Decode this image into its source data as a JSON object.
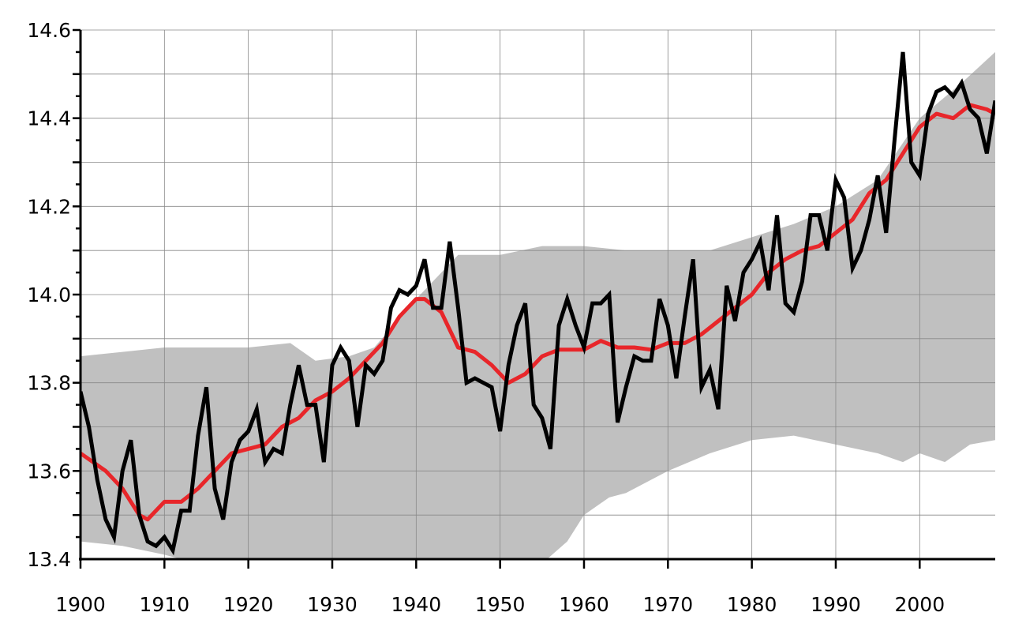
{
  "chart_data": {
    "type": "line",
    "title": "",
    "xlabel": "",
    "ylabel": "",
    "xlim": [
      1900,
      2009
    ],
    "ylim": [
      13.4,
      14.6
    ],
    "grid": true,
    "legend": "none",
    "x_ticks": [
      "1900",
      "1910",
      "1920",
      "1930",
      "1940",
      "1950",
      "1960",
      "1970",
      "1980",
      "1990",
      "2000"
    ],
    "y_ticks": [
      "13.4",
      "13.6",
      "13.8",
      "14.0",
      "14.2",
      "14.4",
      "14.6"
    ],
    "colors": {
      "annual": "#000000",
      "smoothed": "#e8262a",
      "band": "#c0c0c0",
      "grid": "#888888"
    },
    "series": [
      {
        "type": "line",
        "color": "#000000",
        "x_start": 1900,
        "values": [
          13.78,
          13.7,
          13.58,
          13.49,
          13.45,
          13.6,
          13.67,
          13.5,
          13.44,
          13.43,
          13.45,
          13.42,
          13.51,
          13.51,
          13.68,
          13.79,
          13.56,
          13.49,
          13.62,
          13.67,
          13.69,
          13.74,
          13.62,
          13.65,
          13.64,
          13.75,
          13.84,
          13.75,
          13.75,
          13.62,
          13.84,
          13.88,
          13.85,
          13.7,
          13.84,
          13.82,
          13.85,
          13.97,
          14.01,
          14.0,
          14.02,
          14.08,
          13.97,
          13.97,
          14.12,
          13.97,
          13.8,
          13.81,
          13.8,
          13.79,
          13.69,
          13.84,
          13.93,
          13.98,
          13.75,
          13.72,
          13.65,
          13.93,
          13.99,
          13.93,
          13.88,
          13.98,
          13.98,
          14.0,
          13.71,
          13.79,
          13.86,
          13.85,
          13.85,
          13.99,
          13.93,
          13.81,
          13.95,
          14.08,
          13.79,
          13.83,
          13.74,
          14.02,
          13.94,
          14.05,
          14.08,
          14.12,
          14.01,
          14.18,
          13.98,
          13.96,
          14.03,
          14.18,
          14.18,
          14.1,
          14.26,
          14.22,
          14.06,
          14.1,
          14.17,
          14.27,
          14.14,
          14.35,
          14.55,
          14.3,
          14.27,
          14.41,
          14.46,
          14.47,
          14.45,
          14.48,
          14.42,
          14.4,
          14.32,
          14.44
        ]
      },
      {
        "type": "smoothed",
        "color": "#e8262a",
        "points": [
          [
            1900,
            13.64
          ],
          [
            1903,
            13.6
          ],
          [
            1905,
            13.56
          ],
          [
            1907,
            13.5
          ],
          [
            1908,
            13.49
          ],
          [
            1910,
            13.53
          ],
          [
            1912,
            13.53
          ],
          [
            1914,
            13.56
          ],
          [
            1916,
            13.6
          ],
          [
            1918,
            13.64
          ],
          [
            1920,
            13.65
          ],
          [
            1922,
            13.66
          ],
          [
            1924,
            13.7
          ],
          [
            1926,
            13.72
          ],
          [
            1928,
            13.76
          ],
          [
            1930,
            13.78
          ],
          [
            1932,
            13.81
          ],
          [
            1934,
            13.85
          ],
          [
            1936,
            13.89
          ],
          [
            1938,
            13.95
          ],
          [
            1940,
            13.99
          ],
          [
            1941,
            13.99
          ],
          [
            1943,
            13.96
          ],
          [
            1945,
            13.88
          ],
          [
            1947,
            13.87
          ],
          [
            1949,
            13.84
          ],
          [
            1951,
            13.8
          ],
          [
            1953,
            13.82
          ],
          [
            1955,
            13.86
          ],
          [
            1957,
            13.875
          ],
          [
            1960,
            13.875
          ],
          [
            1962,
            13.895
          ],
          [
            1964,
            13.88
          ],
          [
            1966,
            13.88
          ],
          [
            1968,
            13.875
          ],
          [
            1970,
            13.89
          ],
          [
            1972,
            13.89
          ],
          [
            1974,
            13.91
          ],
          [
            1976,
            13.94
          ],
          [
            1978,
            13.97
          ],
          [
            1980,
            14.0
          ],
          [
            1982,
            14.05
          ],
          [
            1984,
            14.08
          ],
          [
            1986,
            14.1
          ],
          [
            1988,
            14.11
          ],
          [
            1990,
            14.14
          ],
          [
            1992,
            14.17
          ],
          [
            1994,
            14.23
          ],
          [
            1996,
            14.26
          ],
          [
            1998,
            14.32
          ],
          [
            2000,
            14.38
          ],
          [
            2002,
            14.41
          ],
          [
            2004,
            14.4
          ],
          [
            2006,
            14.43
          ],
          [
            2008,
            14.42
          ],
          [
            2009,
            14.41
          ]
        ]
      },
      {
        "type": "band",
        "color": "#c0c0c0",
        "upper": [
          [
            1900,
            13.86
          ],
          [
            1905,
            13.87
          ],
          [
            1910,
            13.88
          ],
          [
            1920,
            13.88
          ],
          [
            1925,
            13.89
          ],
          [
            1928,
            13.85
          ],
          [
            1932,
            13.86
          ],
          [
            1935,
            13.88
          ],
          [
            1940,
            13.99
          ],
          [
            1943,
            14.05
          ],
          [
            1945,
            14.09
          ],
          [
            1950,
            14.09
          ],
          [
            1955,
            14.11
          ],
          [
            1960,
            14.11
          ],
          [
            1965,
            14.1
          ],
          [
            1970,
            14.1
          ],
          [
            1975,
            14.1
          ],
          [
            1980,
            14.13
          ],
          [
            1985,
            14.16
          ],
          [
            1990,
            14.2
          ],
          [
            1995,
            14.26
          ],
          [
            2000,
            14.4
          ],
          [
            2005,
            14.48
          ],
          [
            2009,
            14.55
          ]
        ],
        "lower": [
          [
            1900,
            13.44
          ],
          [
            1905,
            13.43
          ],
          [
            1910,
            13.41
          ],
          [
            1912,
            13.4
          ],
          [
            1920,
            13.38
          ],
          [
            1930,
            13.39
          ],
          [
            1940,
            13.37
          ],
          [
            1950,
            13.35
          ],
          [
            1955,
            13.39
          ],
          [
            1958,
            13.44
          ],
          [
            1960,
            13.5
          ],
          [
            1963,
            13.54
          ],
          [
            1965,
            13.55
          ],
          [
            1968,
            13.58
          ],
          [
            1970,
            13.6
          ],
          [
            1975,
            13.64
          ],
          [
            1980,
            13.67
          ],
          [
            1985,
            13.68
          ],
          [
            1990,
            13.66
          ],
          [
            1995,
            13.64
          ],
          [
            1998,
            13.62
          ],
          [
            2000,
            13.64
          ],
          [
            2003,
            13.62
          ],
          [
            2006,
            13.66
          ],
          [
            2009,
            13.67
          ]
        ]
      }
    ]
  }
}
